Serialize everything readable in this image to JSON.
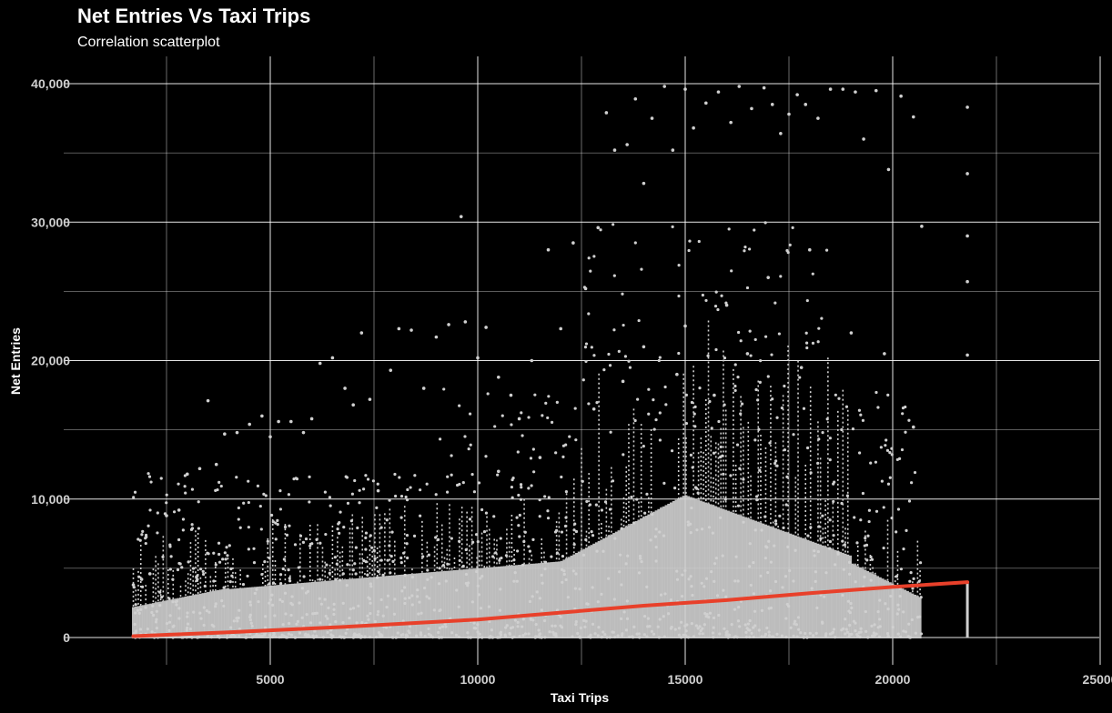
{
  "chart_data": {
    "type": "scatter",
    "title": "Net Entries Vs Taxi Trips",
    "subtitle": "Correlation scatterplot",
    "xlabel": "Taxi Trips",
    "ylabel": "Net Entries",
    "xlim": [
      0,
      25000
    ],
    "ylim": [
      0,
      40000
    ],
    "x_ticks": [
      5000,
      10000,
      15000,
      20000,
      25000
    ],
    "x_tick_labels": [
      "5000",
      "10000",
      "15000",
      "20000",
      "25000"
    ],
    "y_ticks": [
      0,
      10000,
      20000,
      30000,
      40000
    ],
    "y_tick_labels": [
      "0",
      "10,000",
      "20,000",
      "30,000",
      "40,000"
    ],
    "grid": true,
    "point_color": "#d0d0d0",
    "trend_color": "#e8402a",
    "background": "#000000",
    "trend_line": {
      "x": [
        1700,
        4000,
        7000,
        10000,
        12000,
        14000,
        16000,
        18000,
        20000,
        21800
      ],
      "y": [
        100,
        380,
        800,
        1300,
        1800,
        2300,
        2700,
        3200,
        3650,
        4000
      ]
    },
    "series": [
      {
        "values": [
          [
            1700,
            3800
          ],
          [
            1900,
            4200
          ],
          [
            2100,
            4600
          ],
          [
            2500,
            8800
          ],
          [
            2800,
            9200
          ],
          [
            3000,
            11800
          ],
          [
            3300,
            12200
          ],
          [
            3500,
            17100
          ],
          [
            3700,
            12500
          ],
          [
            3900,
            14700
          ],
          [
            4200,
            14800
          ],
          [
            4500,
            15400
          ],
          [
            4800,
            16000
          ],
          [
            5000,
            14500
          ],
          [
            5200,
            15600
          ],
          [
            5500,
            15600
          ],
          [
            5800,
            14800
          ],
          [
            6000,
            15800
          ],
          [
            6200,
            19800
          ],
          [
            6500,
            20200
          ],
          [
            6800,
            18000
          ],
          [
            7000,
            16800
          ],
          [
            7200,
            22000
          ],
          [
            7400,
            17200
          ],
          [
            7600,
            10600
          ],
          [
            7900,
            19300
          ],
          [
            8100,
            22300
          ],
          [
            8400,
            22200
          ],
          [
            8700,
            18000
          ],
          [
            9000,
            21700
          ],
          [
            9300,
            22600
          ],
          [
            9600,
            30400
          ],
          [
            9700,
            22800
          ],
          [
            10000,
            20200
          ],
          [
            10200,
            22400
          ],
          [
            10500,
            18800
          ],
          [
            10800,
            17500
          ],
          [
            11000,
            15800
          ],
          [
            11300,
            20000
          ],
          [
            11700,
            28000
          ],
          [
            12000,
            22300
          ],
          [
            12300,
            28500
          ],
          [
            12600,
            25200
          ],
          [
            12900,
            29600
          ],
          [
            13100,
            37900
          ],
          [
            13300,
            35200
          ],
          [
            13600,
            35600
          ],
          [
            13800,
            38900
          ],
          [
            14000,
            32800
          ],
          [
            14200,
            37500
          ],
          [
            14500,
            39800
          ],
          [
            14700,
            35200
          ],
          [
            15000,
            39600
          ],
          [
            15200,
            36800
          ],
          [
            15500,
            38600
          ],
          [
            15800,
            39400
          ],
          [
            16100,
            37200
          ],
          [
            16300,
            39800
          ],
          [
            16600,
            38200
          ],
          [
            16900,
            39700
          ],
          [
            17100,
            38500
          ],
          [
            17300,
            36400
          ],
          [
            17500,
            37800
          ],
          [
            17700,
            39200
          ],
          [
            17900,
            38500
          ],
          [
            18200,
            37500
          ],
          [
            18500,
            39600
          ],
          [
            18800,
            39600
          ],
          [
            19100,
            39400
          ],
          [
            19300,
            36000
          ],
          [
            19600,
            39500
          ],
          [
            19900,
            33800
          ],
          [
            20200,
            39100
          ],
          [
            20500,
            37600
          ],
          [
            20700,
            29700
          ],
          [
            21800,
            38300
          ],
          [
            21800,
            33500
          ],
          [
            21800,
            29000
          ],
          [
            21800,
            25700
          ],
          [
            21800,
            20400
          ],
          [
            14000,
            21000
          ],
          [
            15000,
            22500
          ],
          [
            16000,
            24000
          ],
          [
            17000,
            26000
          ],
          [
            18000,
            28000
          ],
          [
            13500,
            18500
          ],
          [
            16500,
            20500
          ],
          [
            19000,
            22000
          ],
          [
            12800,
            16500
          ],
          [
            14800,
            19000
          ],
          [
            15700,
            17500
          ],
          [
            17800,
            19500
          ],
          [
            19800,
            20500
          ],
          [
            20500,
            15200
          ],
          [
            11500,
            13000
          ],
          [
            10500,
            12000
          ]
        ]
      }
    ]
  }
}
